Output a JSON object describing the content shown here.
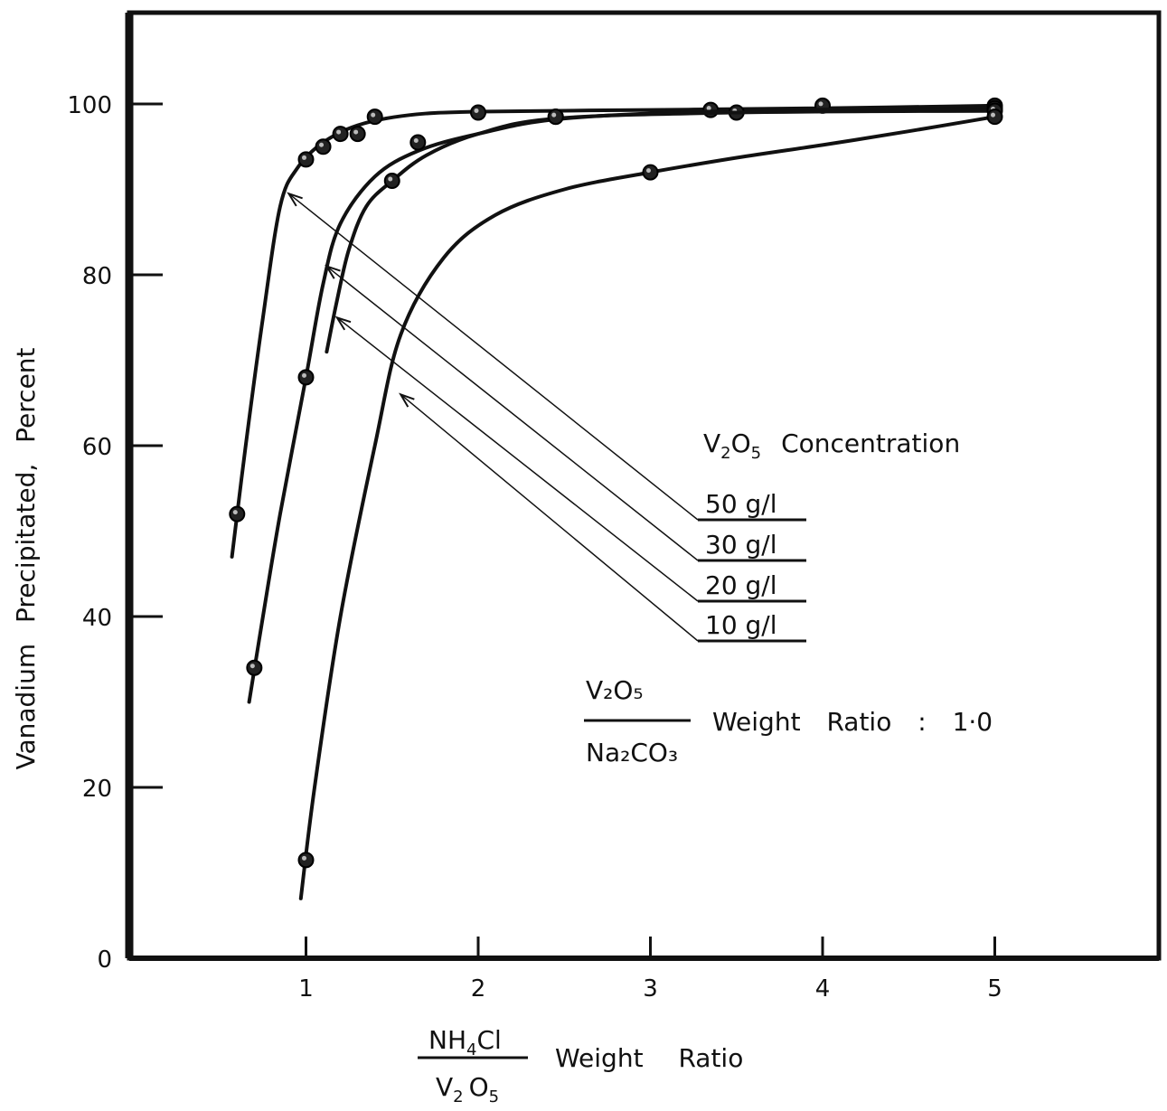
{
  "chart_data": {
    "type": "line",
    "title": "",
    "xlabel": "Weight Ratio",
    "xlabel_fraction": {
      "numerator": "NH",
      "numerator_sub": "4",
      "numerator_tail": "Cl",
      "denominator": "V",
      "denominator_sub1": "2",
      "denominator_mid": "O",
      "denominator_sub2": "5"
    },
    "ylabel": "Vanadium Precipitated, Percent",
    "xlim": [
      0,
      5.5
    ],
    "ylim": [
      0,
      100
    ],
    "x_ticks": [
      1,
      2,
      3,
      4,
      5
    ],
    "x_tick_labels": [
      "1",
      "2",
      "3",
      "4",
      "5"
    ],
    "y_ticks": [
      0,
      20,
      40,
      60,
      80,
      100
    ],
    "y_tick_labels": [
      "0",
      "20",
      "40",
      "60",
      "80",
      "100"
    ],
    "grid": false,
    "legend_title": {
      "pre": "V",
      "sub1": "2",
      "mid": "O",
      "sub2": "5",
      "tail": "Concentration"
    },
    "series": [
      {
        "name": "50 g/l",
        "points": [
          [
            0.6,
            52
          ],
          [
            1.0,
            93.5
          ],
          [
            1.1,
            95
          ],
          [
            1.2,
            96.5
          ],
          [
            1.3,
            96.5
          ],
          [
            1.4,
            98.5
          ],
          [
            2.0,
            99
          ],
          [
            3.35,
            99.3
          ],
          [
            4.0,
            99.8
          ],
          [
            5.0,
            99.8
          ]
        ],
        "curve": [
          [
            0.57,
            47
          ],
          [
            0.65,
            60
          ],
          [
            0.75,
            75
          ],
          [
            0.85,
            88
          ],
          [
            0.95,
            92.5
          ],
          [
            1.1,
            95.5
          ],
          [
            1.3,
            97.5
          ],
          [
            1.6,
            98.7
          ],
          [
            2.0,
            99.1
          ],
          [
            3.0,
            99.3
          ],
          [
            4.0,
            99.5
          ],
          [
            5.0,
            99.8
          ]
        ],
        "arrow_target": [
          0.9,
          89.5
        ]
      },
      {
        "name": "30 g/l",
        "points": [
          [
            0.7,
            34
          ],
          [
            1.0,
            68
          ],
          [
            1.65,
            95.5
          ],
          [
            2.45,
            98.5
          ],
          [
            3.5,
            99
          ],
          [
            5.0,
            99.5
          ]
        ],
        "curve": [
          [
            0.67,
            30
          ],
          [
            0.75,
            40
          ],
          [
            0.85,
            52
          ],
          [
            1.0,
            68
          ],
          [
            1.1,
            79
          ],
          [
            1.2,
            86
          ],
          [
            1.4,
            91.5
          ],
          [
            1.65,
            94.5
          ],
          [
            2.0,
            96.5
          ],
          [
            2.5,
            98.3
          ],
          [
            3.5,
            99.2
          ],
          [
            5.0,
            99.5
          ]
        ],
        "arrow_target": [
          1.12,
          81
        ]
      },
      {
        "name": "20 g/l",
        "points": [
          [
            1.5,
            91
          ],
          [
            2.45,
            98.5
          ],
          [
            5.0,
            99.2
          ]
        ],
        "curve": [
          [
            1.12,
            71
          ],
          [
            1.18,
            77
          ],
          [
            1.25,
            83
          ],
          [
            1.35,
            88
          ],
          [
            1.5,
            91
          ],
          [
            1.7,
            94
          ],
          [
            2.0,
            96.5
          ],
          [
            2.45,
            98.3
          ],
          [
            3.5,
            99
          ],
          [
            5.0,
            99.2
          ]
        ],
        "arrow_target": [
          1.18,
          75
        ]
      },
      {
        "name": "10 g/l",
        "points": [
          [
            1.0,
            11.5
          ],
          [
            3.0,
            92
          ],
          [
            5.0,
            98.5
          ]
        ],
        "curve": [
          [
            0.97,
            7
          ],
          [
            1.05,
            20
          ],
          [
            1.2,
            40
          ],
          [
            1.4,
            60
          ],
          [
            1.55,
            73
          ],
          [
            1.8,
            82
          ],
          [
            2.1,
            87
          ],
          [
            2.5,
            90
          ],
          [
            3.0,
            92
          ],
          [
            3.5,
            93.7
          ],
          [
            4.0,
            95.2
          ],
          [
            4.5,
            96.8
          ],
          [
            5.0,
            98.5
          ]
        ],
        "arrow_target": [
          1.55,
          66
        ]
      }
    ],
    "annotations": [
      {
        "text": "Weight Ratio : 1·0",
        "fraction_numerator": "V₂O₅",
        "fraction_denominator": "Na₂CO₃"
      }
    ]
  }
}
